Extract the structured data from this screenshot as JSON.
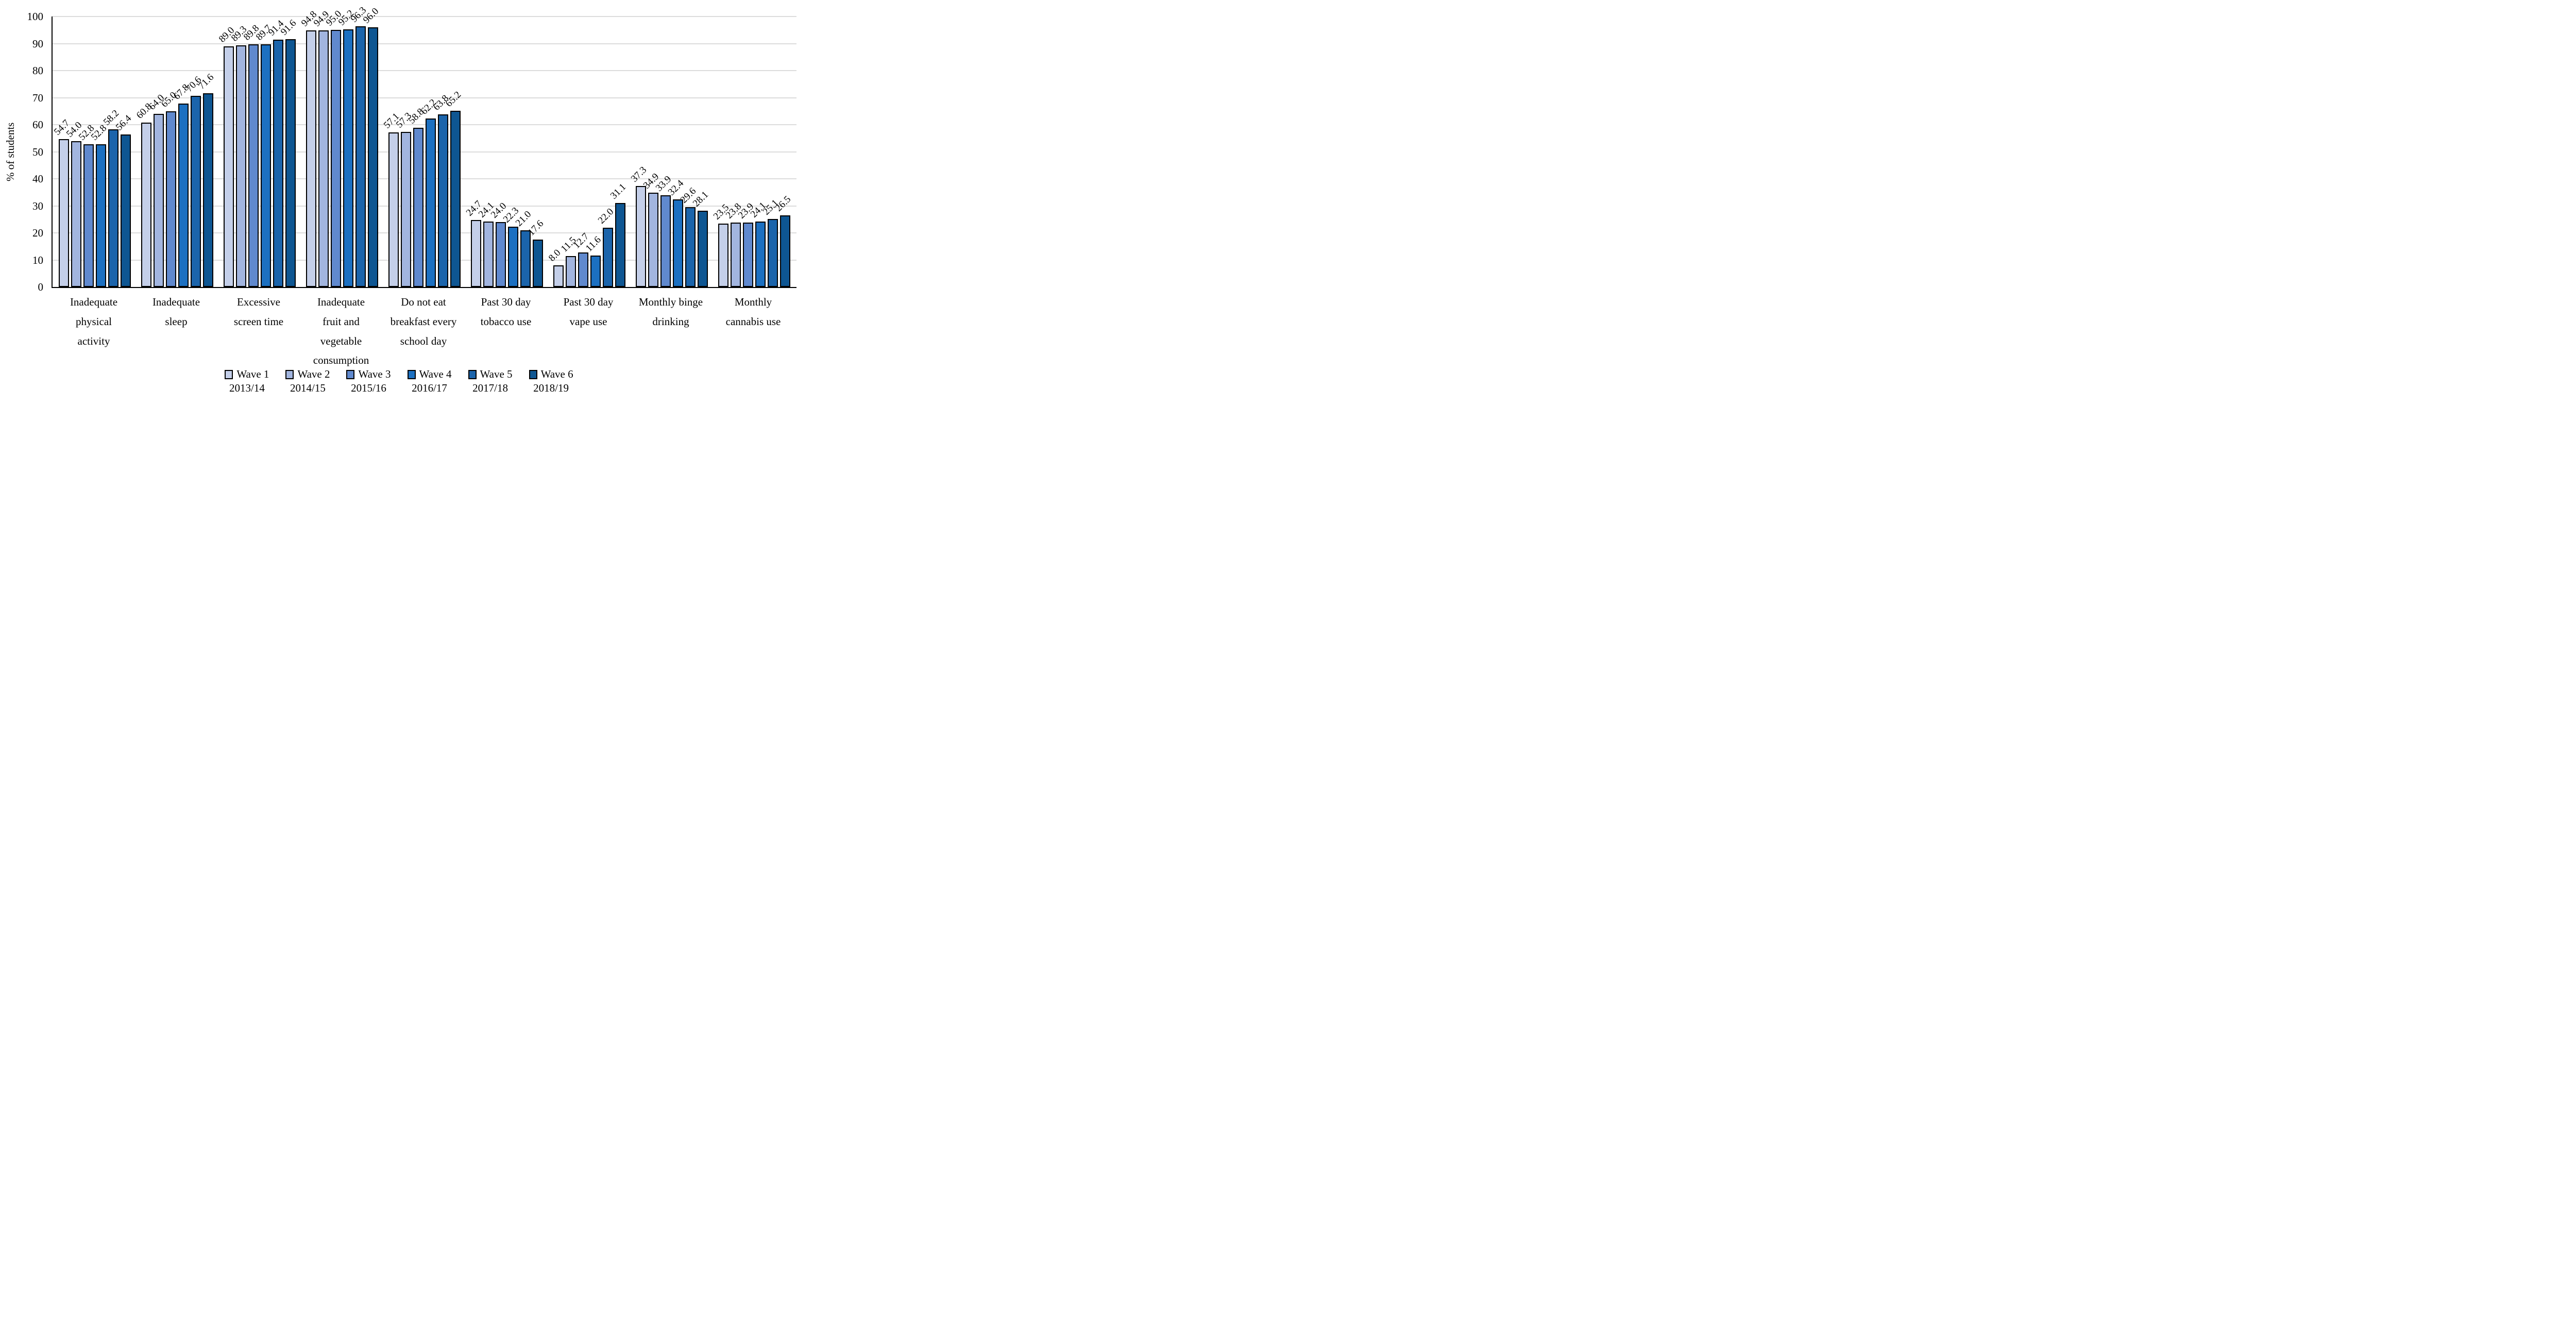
{
  "chart_data": {
    "type": "bar",
    "title": "",
    "xlabel": "",
    "ylabel": "% of students",
    "ylim": [
      0,
      100
    ],
    "ytick_step": 10,
    "yticks": [
      0,
      10,
      20,
      30,
      40,
      50,
      60,
      70,
      80,
      90,
      100
    ],
    "grid": "horizontal",
    "gridline_color": "#dcdcdc",
    "legend_position": "bottom",
    "value_labels": true,
    "value_label_rotation_deg": -45,
    "categories": [
      "Inadequate\nphysical\nactivity",
      "Inadequate\nsleep",
      "Excessive\nscreen time",
      "Inadequate\nfruit and\nvegetable\nconsumption",
      "Do not eat\nbreakfast every\nschool day",
      "Past 30 day\ntobacco use",
      "Past 30 day\nvape use",
      "Monthly binge\ndrinking",
      "Monthly\ncannabis use"
    ],
    "series": [
      {
        "name": "Wave 1",
        "year": "2013/14",
        "color": "#c4cfe9",
        "values": [
          54.7,
          60.8,
          89.0,
          94.8,
          57.1,
          24.7,
          8.0,
          37.3,
          23.5
        ]
      },
      {
        "name": "Wave 2",
        "year": "2014/15",
        "color": "#a2b5df",
        "values": [
          54.0,
          64.0,
          89.3,
          94.9,
          57.3,
          24.1,
          11.5,
          34.9,
          23.8
        ]
      },
      {
        "name": "Wave 3",
        "year": "2015/16",
        "color": "#6089ce",
        "values": [
          52.8,
          65.0,
          89.8,
          95.0,
          58.8,
          24.0,
          12.7,
          33.9,
          23.9
        ]
      },
      {
        "name": "Wave 4",
        "year": "2016/17",
        "color": "#1c70c1",
        "values": [
          52.8,
          67.8,
          89.7,
          95.2,
          62.2,
          22.3,
          11.6,
          32.4,
          24.1
        ]
      },
      {
        "name": "Wave 5",
        "year": "2017/18",
        "color": "#1b64ab",
        "values": [
          58.2,
          70.6,
          91.4,
          96.3,
          63.8,
          21.0,
          22.0,
          29.6,
          25.1
        ]
      },
      {
        "name": "Wave 6",
        "year": "2018/19",
        "color": "#0e5692",
        "values": [
          56.4,
          71.6,
          91.6,
          96.0,
          65.2,
          17.6,
          31.1,
          28.1,
          26.5
        ]
      }
    ]
  }
}
